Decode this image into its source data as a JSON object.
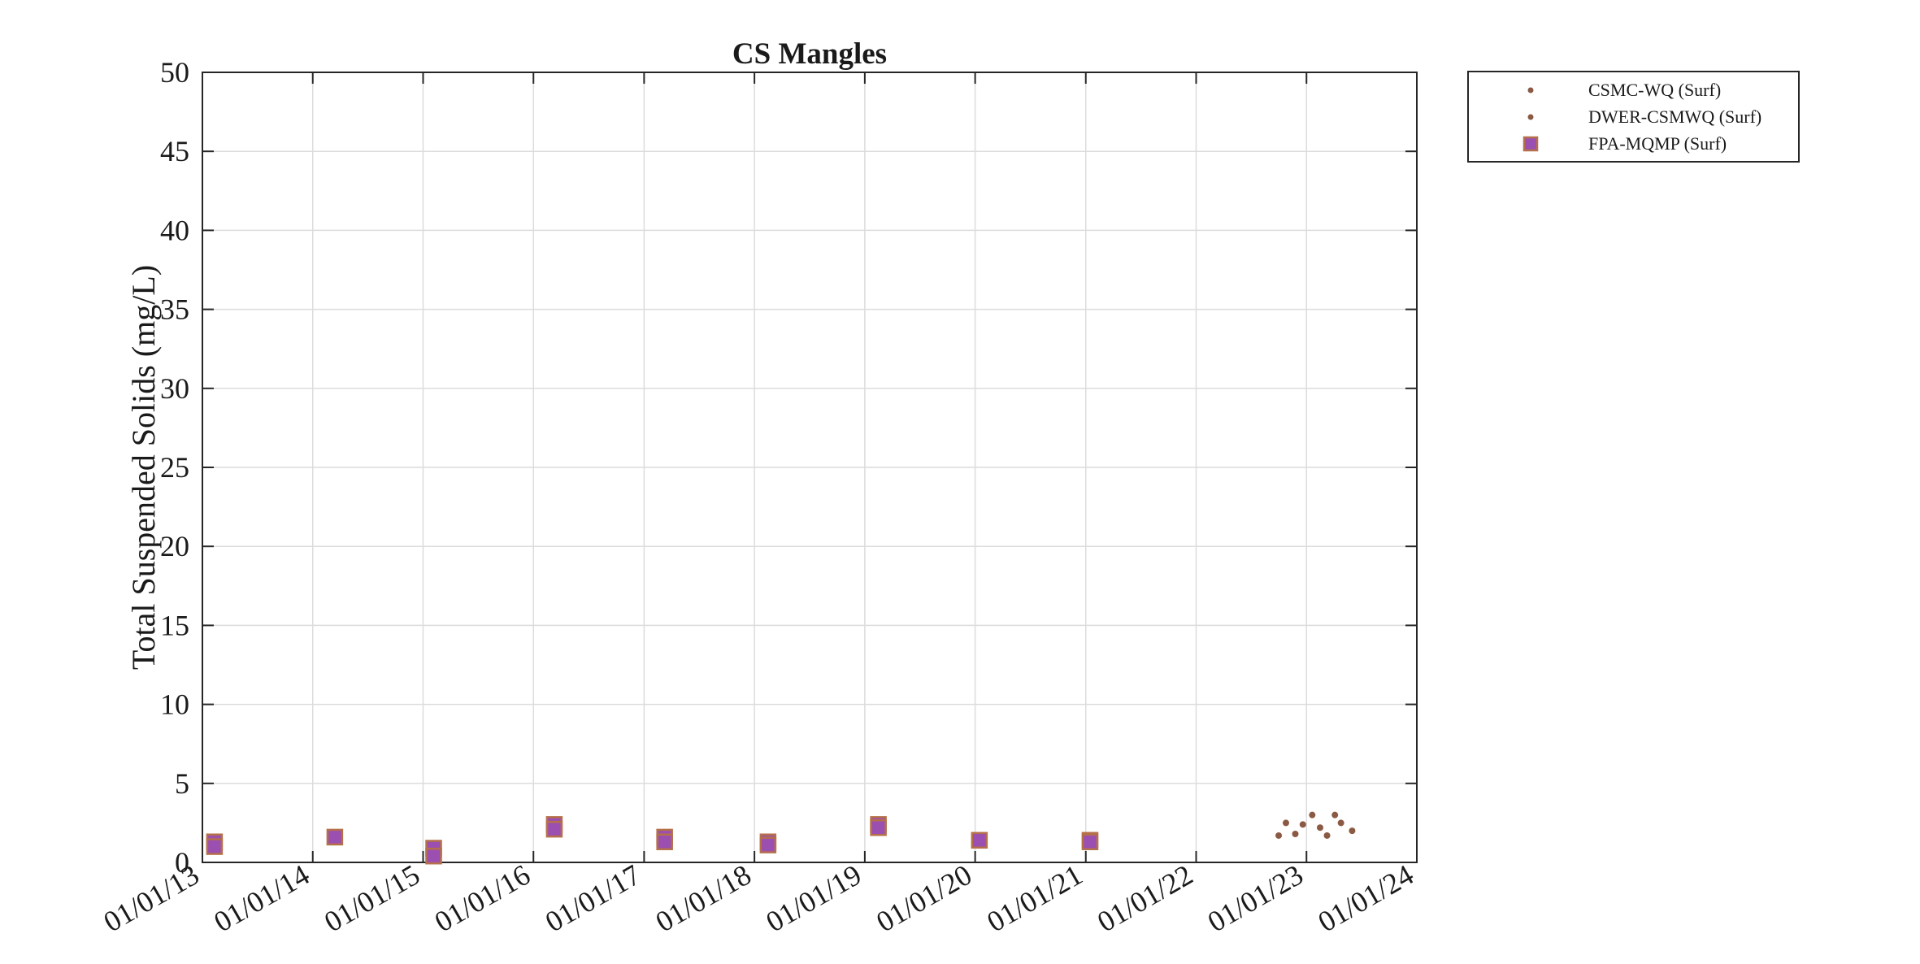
{
  "chart_data": {
    "type": "scatter",
    "title": "CS Mangles",
    "xlabel": "",
    "ylabel": "Total Suspended Solids (mg/L)",
    "ylim": [
      0,
      50
    ],
    "xlim": [
      "2013-01-01",
      "2024-01-01"
    ],
    "grid": true,
    "legend_position": "outside-top-right",
    "y_ticks": [
      "0",
      "5",
      "10",
      "15",
      "20",
      "25",
      "30",
      "35",
      "40",
      "45",
      "50"
    ],
    "x_ticks": [
      {
        "label": "01/01/13",
        "date": "2013-01-01"
      },
      {
        "label": "01/01/14",
        "date": "2014-01-01"
      },
      {
        "label": "01/01/15",
        "date": "2015-01-01"
      },
      {
        "label": "01/01/16",
        "date": "2016-01-01"
      },
      {
        "label": "01/01/17",
        "date": "2017-01-01"
      },
      {
        "label": "01/01/18",
        "date": "2018-01-01"
      },
      {
        "label": "01/01/19",
        "date": "2019-01-01"
      },
      {
        "label": "01/01/20",
        "date": "2020-01-01"
      },
      {
        "label": "01/01/21",
        "date": "2021-01-01"
      },
      {
        "label": "01/01/22",
        "date": "2022-01-01"
      },
      {
        "label": "01/01/23",
        "date": "2023-01-01"
      },
      {
        "label": "01/01/24",
        "date": "2024-01-01"
      }
    ],
    "series": [
      {
        "name": "CSMC-WQ (Surf)",
        "marker": "dot",
        "color": "#8B5A44",
        "points": [
          {
            "x": "2022-10-01",
            "y": 1.7
          },
          {
            "x": "2022-10-25",
            "y": 2.5
          },
          {
            "x": "2022-11-25",
            "y": 1.8
          },
          {
            "x": "2022-12-20",
            "y": 2.4
          },
          {
            "x": "2023-01-20",
            "y": 3.0
          },
          {
            "x": "2023-02-15",
            "y": 2.2
          }
        ]
      },
      {
        "name": "DWER-CSMWQ (Surf)",
        "marker": "dot",
        "color": "#8B5A44",
        "points": [
          {
            "x": "2023-03-10",
            "y": 1.7
          },
          {
            "x": "2023-04-05",
            "y": 3.0
          },
          {
            "x": "2023-04-25",
            "y": 2.5
          },
          {
            "x": "2023-06-01",
            "y": 2.0
          }
        ]
      },
      {
        "name": "FPA-MQMP (Surf)",
        "marker": "square",
        "color": "#9B4FB0",
        "edge_color": "#B5704A",
        "points": [
          {
            "x": "2013-02-10",
            "y": 1.3
          },
          {
            "x": "2013-02-10",
            "y": 1.0
          },
          {
            "x": "2014-03-15",
            "y": 1.6
          },
          {
            "x": "2015-02-05",
            "y": 0.9
          },
          {
            "x": "2015-02-05",
            "y": 0.4
          },
          {
            "x": "2016-03-10",
            "y": 2.4
          },
          {
            "x": "2016-03-10",
            "y": 2.1
          },
          {
            "x": "2017-03-10",
            "y": 1.6
          },
          {
            "x": "2017-03-10",
            "y": 1.3
          },
          {
            "x": "2018-02-15",
            "y": 1.3
          },
          {
            "x": "2018-02-15",
            "y": 1.1
          },
          {
            "x": "2019-02-15",
            "y": 2.4
          },
          {
            "x": "2019-02-15",
            "y": 2.2
          },
          {
            "x": "2020-01-15",
            "y": 1.4
          },
          {
            "x": "2021-01-15",
            "y": 1.4
          },
          {
            "x": "2021-01-15",
            "y": 1.3
          }
        ]
      }
    ]
  }
}
